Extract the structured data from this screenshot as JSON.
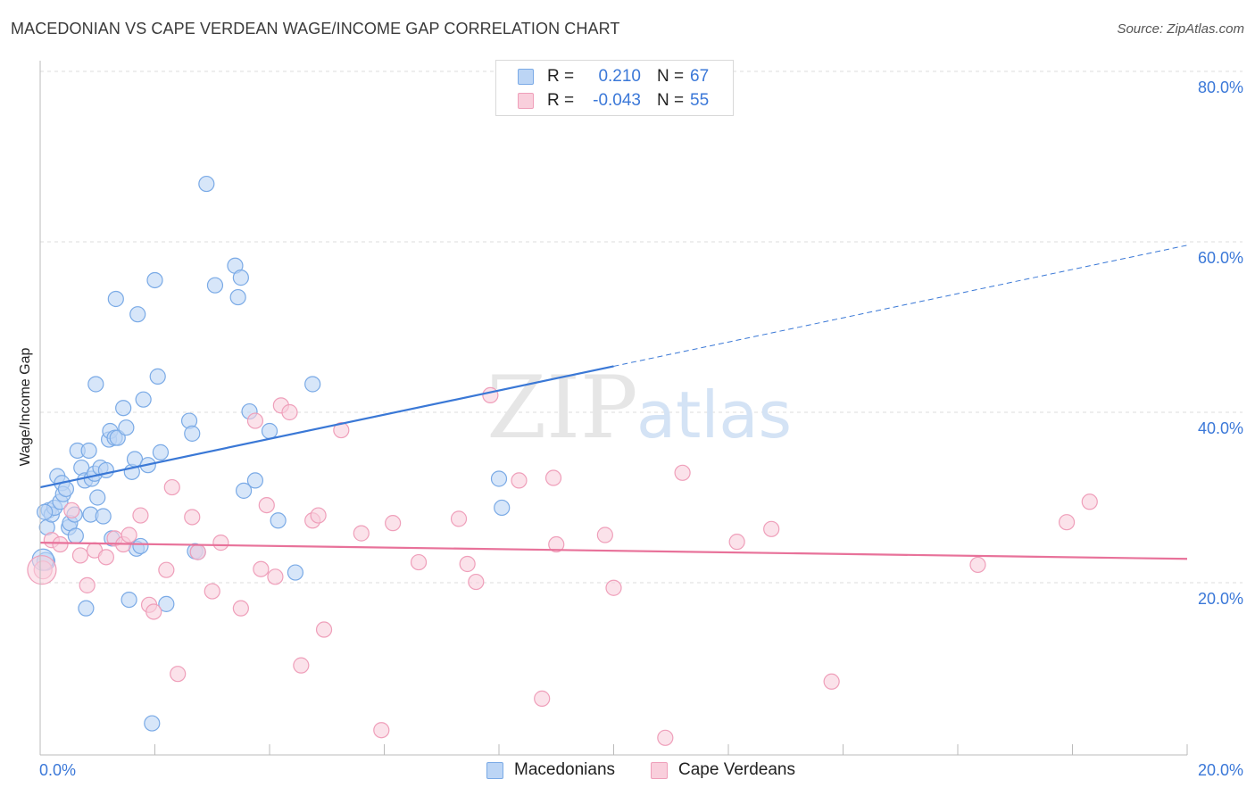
{
  "header": {
    "title": "MACEDONIAN VS CAPE VERDEAN WAGE/INCOME GAP CORRELATION CHART",
    "source": "Source: ZipAtlas.com"
  },
  "watermark": {
    "zip": "ZIP",
    "atlas": "atlas"
  },
  "legend_top": {
    "rows": [
      {
        "r_label": "R =",
        "r_value": "0.210",
        "n_label": "N =",
        "n_value": "67"
      },
      {
        "r_label": "R =",
        "r_value": "-0.043",
        "n_label": "N =",
        "n_value": "55"
      }
    ]
  },
  "legend_bottom": {
    "items": [
      {
        "label": "Macedonians"
      },
      {
        "label": "Cape Verdeans"
      }
    ]
  },
  "colors": {
    "blue_fill": "#bcd5f5",
    "blue_stroke": "#7aaae6",
    "blue_line": "#3a78d6",
    "pink_fill": "#f9cfdc",
    "pink_stroke": "#ef9fba",
    "pink_line": "#e8729a",
    "grid": "#dedede",
    "tick_label": "#3b78d8"
  },
  "chart_data": {
    "type": "scatter",
    "title": "MACEDONIAN VS CAPE VERDEAN WAGE/INCOME GAP CORRELATION CHART",
    "xlabel": "",
    "ylabel": "Wage/Income Gap",
    "xlim": [
      0,
      20
    ],
    "ylim": [
      0,
      80
    ],
    "y_ticks": [
      20,
      40,
      60,
      80
    ],
    "y_tick_labels": [
      "20.0%",
      "40.0%",
      "60.0%",
      "80.0%"
    ],
    "x_tick_labels": [
      "0.0%",
      "20.0%"
    ],
    "grid": true,
    "series": [
      {
        "name": "Macedonians",
        "R": 0.21,
        "N": 67,
        "trend": {
          "x0": 0,
          "y0": 31.2,
          "x1": 10,
          "y1": 45.4,
          "dash_to_x": 20,
          "dash_to_y": 59.6
        },
        "points": [
          [
            0.1,
            22.5
          ],
          [
            0.12,
            26.5
          ],
          [
            0.15,
            28.5
          ],
          [
            0.2,
            28
          ],
          [
            0.25,
            28.8
          ],
          [
            0.3,
            32.5
          ],
          [
            0.35,
            29.5
          ],
          [
            0.38,
            31.7
          ],
          [
            0.4,
            30.4
          ],
          [
            0.45,
            31
          ],
          [
            0.5,
            26.5
          ],
          [
            0.52,
            27
          ],
          [
            0.6,
            28
          ],
          [
            0.62,
            25.5
          ],
          [
            0.65,
            35.5
          ],
          [
            0.72,
            33.5
          ],
          [
            0.78,
            32
          ],
          [
            0.8,
            17
          ],
          [
            0.85,
            35.5
          ],
          [
            0.88,
            28
          ],
          [
            0.9,
            32.2
          ],
          [
            0.95,
            32.8
          ],
          [
            0.97,
            43.3
          ],
          [
            1.0,
            30
          ],
          [
            1.05,
            33.5
          ],
          [
            1.1,
            27.8
          ],
          [
            1.15,
            33.2
          ],
          [
            1.2,
            36.8
          ],
          [
            1.22,
            37.8
          ],
          [
            1.3,
            37
          ],
          [
            1.32,
            53.3
          ],
          [
            1.35,
            37
          ],
          [
            1.45,
            40.5
          ],
          [
            1.5,
            38.2
          ],
          [
            1.55,
            18
          ],
          [
            1.6,
            33
          ],
          [
            1.65,
            34.5
          ],
          [
            1.68,
            24
          ],
          [
            1.7,
            51.5
          ],
          [
            1.75,
            24.3
          ],
          [
            1.8,
            41.5
          ],
          [
            1.88,
            33.8
          ],
          [
            2.0,
            55.5
          ],
          [
            2.05,
            44.2
          ],
          [
            2.1,
            35.3
          ],
          [
            2.2,
            17.5
          ],
          [
            2.6,
            39
          ],
          [
            2.65,
            37.5
          ],
          [
            2.7,
            23.7
          ],
          [
            2.75,
            23.6
          ],
          [
            2.9,
            66.8
          ],
          [
            3.05,
            54.9
          ],
          [
            3.4,
            57.2
          ],
          [
            3.45,
            53.5
          ],
          [
            3.5,
            55.8
          ],
          [
            3.55,
            30.8
          ],
          [
            3.65,
            40.1
          ],
          [
            3.75,
            32
          ],
          [
            4.0,
            37.8
          ],
          [
            4.15,
            27.3
          ],
          [
            4.45,
            21.2
          ],
          [
            4.75,
            43.3
          ],
          [
            1.95,
            3.5
          ],
          [
            8.0,
            32.2
          ],
          [
            8.05,
            28.8
          ],
          [
            0.08,
            28.3
          ],
          [
            1.25,
            25.2
          ]
        ]
      },
      {
        "name": "Cape Verdeans",
        "R": -0.043,
        "N": 55,
        "trend": {
          "x0": 0,
          "y0": 24.7,
          "x1": 20,
          "y1": 22.8
        },
        "points": [
          [
            0.05,
            21.5
          ],
          [
            0.2,
            25
          ],
          [
            0.35,
            24.5
          ],
          [
            0.55,
            28.5
          ],
          [
            0.7,
            23.2
          ],
          [
            0.82,
            19.7
          ],
          [
            0.95,
            23.8
          ],
          [
            1.15,
            23
          ],
          [
            1.3,
            25.2
          ],
          [
            1.45,
            24.5
          ],
          [
            1.55,
            25.6
          ],
          [
            1.75,
            27.9
          ],
          [
            1.9,
            17.4
          ],
          [
            1.98,
            16.6
          ],
          [
            2.2,
            21.5
          ],
          [
            2.3,
            31.2
          ],
          [
            2.4,
            9.3
          ],
          [
            2.65,
            27.7
          ],
          [
            2.75,
            23.6
          ],
          [
            3.0,
            19
          ],
          [
            3.15,
            24.7
          ],
          [
            3.5,
            17
          ],
          [
            3.75,
            39
          ],
          [
            3.85,
            21.6
          ],
          [
            3.95,
            29.1
          ],
          [
            4.1,
            20.7
          ],
          [
            4.2,
            40.8
          ],
          [
            4.35,
            40
          ],
          [
            4.55,
            10.3
          ],
          [
            4.75,
            27.3
          ],
          [
            4.85,
            27.9
          ],
          [
            4.95,
            14.5
          ],
          [
            5.25,
            37.9
          ],
          [
            5.6,
            25.8
          ],
          [
            5.95,
            2.7
          ],
          [
            6.15,
            27
          ],
          [
            6.6,
            22.4
          ],
          [
            7.3,
            27.5
          ],
          [
            7.45,
            22.2
          ],
          [
            7.6,
            20.1
          ],
          [
            7.85,
            42
          ],
          [
            8.35,
            32
          ],
          [
            8.75,
            6.4
          ],
          [
            8.95,
            32.3
          ],
          [
            9.0,
            24.5
          ],
          [
            9.85,
            25.6
          ],
          [
            10.0,
            19.4
          ],
          [
            10.9,
            1.8
          ],
          [
            11.2,
            32.9
          ],
          [
            12.15,
            24.8
          ],
          [
            12.75,
            26.3
          ],
          [
            13.8,
            8.4
          ],
          [
            16.35,
            22.1
          ],
          [
            17.9,
            27.1
          ],
          [
            18.3,
            29.5
          ]
        ]
      }
    ]
  }
}
